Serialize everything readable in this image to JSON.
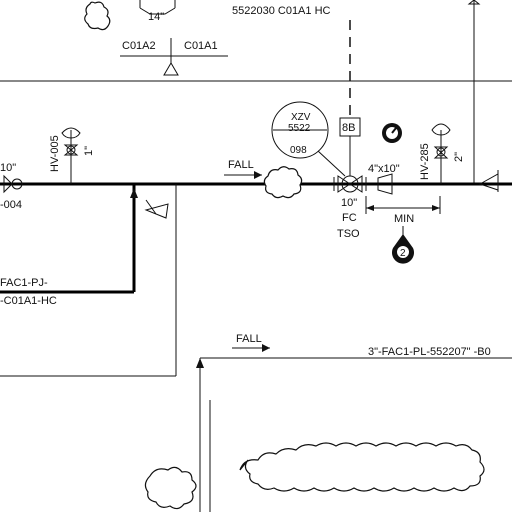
{
  "labels": {
    "top_line_spec": "5522030 C01A1 HC",
    "spec_break_left": "C01A2",
    "spec_break_right": "C01A1",
    "top_reducer": "14\"",
    "hv_tag_left": "HV-005",
    "hv_size_left": "1\"",
    "left_pipe_size": "10\"",
    "left_pipe_num": "-004",
    "fall_upper": "FALL",
    "xzv_line1": "XZV",
    "xzv_line2": "5522",
    "xzv_line3": "098",
    "box_8b": "8B",
    "reducer_size": "4\"x10\"",
    "hv_tag_right": "HV-285",
    "hv_size_right": "2\"",
    "valve_size": "10\"",
    "valve_fc": "FC",
    "valve_tso": "TSO",
    "min_label": "MIN",
    "marker_2": "2",
    "branch_line1": "FAC1-PJ-",
    "branch_line2": "-C01A1-HC",
    "fall_lower": "FALL",
    "lower_line_spec": "3\"-FAC1-PL-552207\" -B0"
  }
}
